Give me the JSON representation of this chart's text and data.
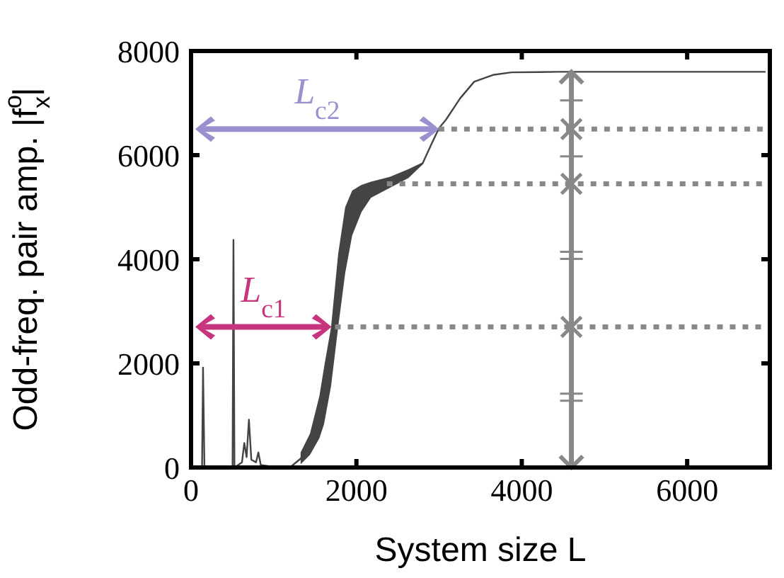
{
  "chart_data": {
    "type": "line",
    "xlabel": "System size L",
    "ylabel": "Odd-freq. pair amp. |f$^{o}$$_{x}$|",
    "xlim": [
      0,
      7000
    ],
    "ylim": [
      0,
      8000
    ],
    "xticks": [
      0,
      2000,
      4000,
      6000
    ],
    "yticks": [
      0,
      2000,
      4000,
      6000,
      8000
    ],
    "grid": false,
    "legend": false,
    "marker": "none",
    "series": [
      {
        "color": "#444444",
        "x": [
          20,
          133,
          145,
          162,
          502,
          513,
          525,
          616,
          644,
          672,
          700,
          729,
          786,
          814,
          843,
          1041,
          1211,
          1325,
          1438,
          1552,
          1608,
          1693,
          1779,
          1864,
          1949,
          2063,
          2176,
          2403,
          2630,
          2800,
          2913,
          3000,
          3083,
          3254,
          3424,
          3651,
          3877,
          4446,
          6940
        ],
        "values": [
          0,
          0,
          1920,
          0,
          0,
          4370,
          0,
          100,
          470,
          200,
          920,
          150,
          100,
          290,
          50,
          0,
          20,
          170,
          440,
          970,
          1370,
          2120,
          3390,
          4370,
          4890,
          5170,
          5340,
          5470,
          5650,
          5840,
          6230,
          6520,
          6680,
          7090,
          7410,
          7540,
          7590,
          7600,
          7600
        ],
        "lower": [
          null,
          null,
          null,
          null,
          null,
          null,
          null,
          null,
          null,
          null,
          null,
          null,
          null,
          null,
          null,
          null,
          null,
          60,
          240,
          560,
          830,
          1560,
          2690,
          3730,
          4460,
          4910,
          5180,
          5370,
          5560,
          5820,
          null,
          null,
          null,
          null,
          null,
          null,
          null,
          null,
          null
        ],
        "upper": [
          null,
          null,
          null,
          null,
          null,
          null,
          null,
          null,
          null,
          null,
          null,
          null,
          null,
          null,
          null,
          null,
          null,
          290,
          650,
          1370,
          1920,
          2690,
          4100,
          5000,
          5320,
          5430,
          5490,
          5580,
          5730,
          5860,
          null,
          null,
          null,
          null,
          null,
          null,
          null,
          null,
          null
        ]
      }
    ],
    "ref_lines": [
      {
        "axis": "y",
        "value": 2700,
        "color": "#888888",
        "line_style": "dotted"
      },
      {
        "axis": "y",
        "value": 5450,
        "color": "#888888",
        "line_style": "dotted"
      },
      {
        "axis": "y",
        "value": 6500,
        "color": "#888888",
        "line_style": "dotted"
      },
      {
        "axis": "x",
        "value": 4600,
        "color": "#888888",
        "line_style": "solid"
      }
    ],
    "annotations": [
      {
        "text": "L$_{c1}$",
        "x": 1700,
        "y": 2700
      },
      {
        "text": "L$_{c2}$",
        "x": 3000,
        "y": 6500
      }
    ]
  }
}
